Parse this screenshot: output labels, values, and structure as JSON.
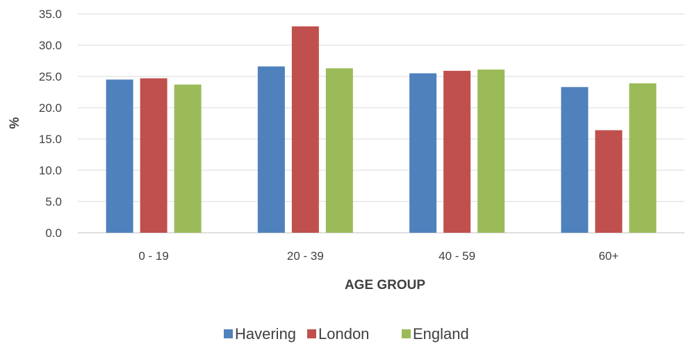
{
  "chart_data": {
    "type": "bar",
    "categories": [
      "0 - 19",
      "20 - 39",
      "40 - 59",
      "60+"
    ],
    "series": [
      {
        "name": "Havering",
        "color": "#4F81BD",
        "values": [
          24.5,
          26.6,
          25.5,
          23.3
        ]
      },
      {
        "name": "London",
        "color": "#C0504D",
        "values": [
          24.7,
          33.0,
          25.9,
          16.4
        ]
      },
      {
        "name": "England",
        "color": "#9BBB59",
        "values": [
          23.7,
          26.3,
          26.1,
          23.9
        ]
      }
    ],
    "xlabel": "AGE GROUP",
    "ylabel": "%",
    "ylim": [
      0,
      35
    ],
    "yticks": [
      "0.0",
      "5.0",
      "10.0",
      "15.0",
      "20.0",
      "25.0",
      "30.0",
      "35.0"
    ],
    "grid": true,
    "legend_position": "bottom"
  }
}
